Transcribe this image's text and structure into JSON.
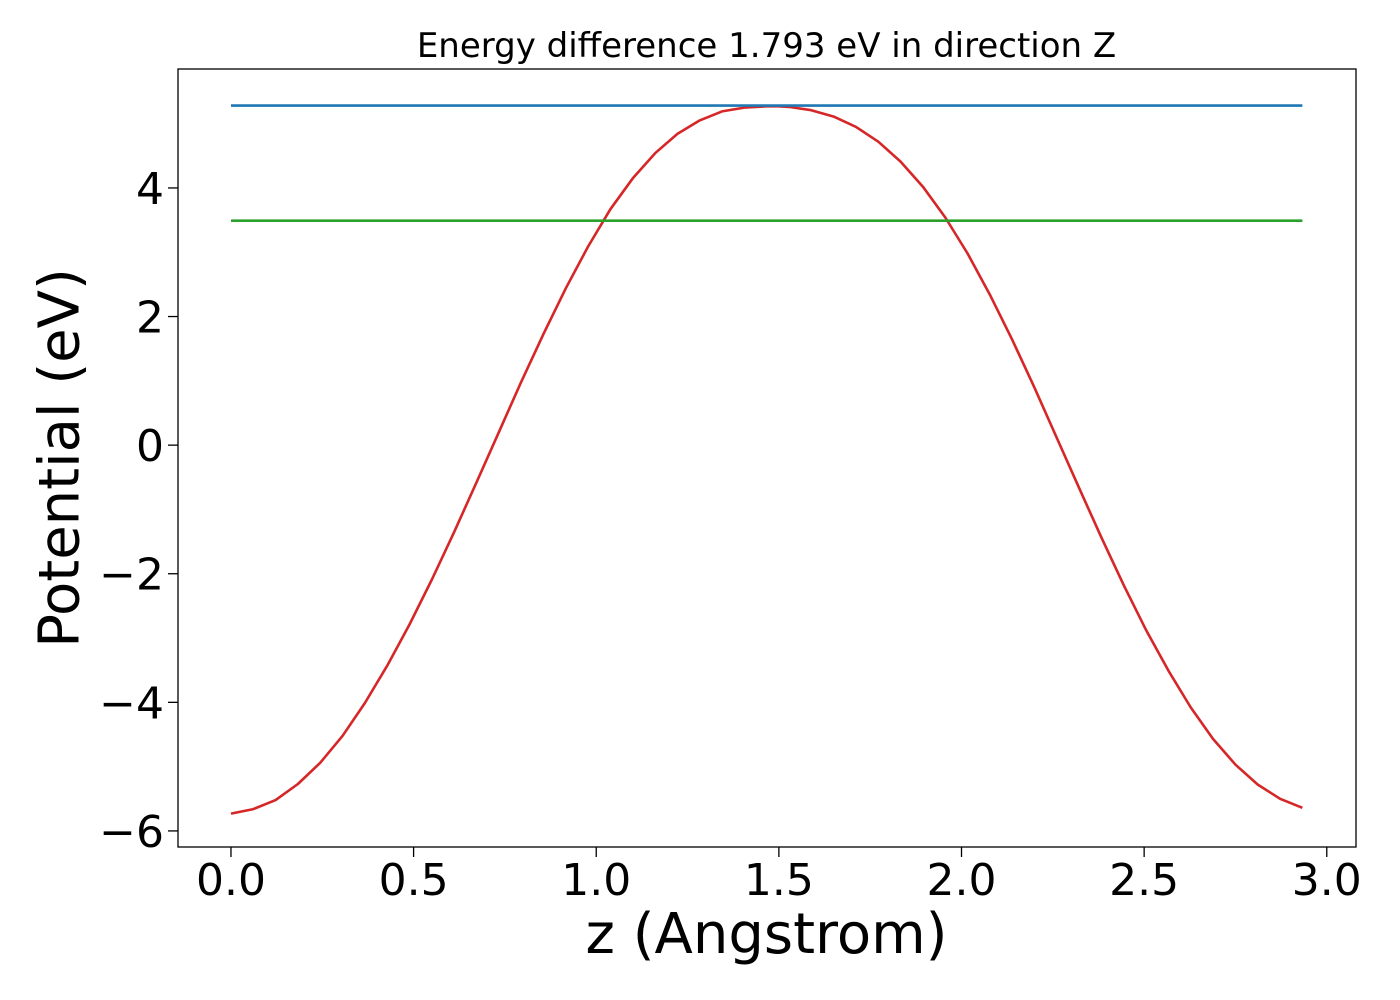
{
  "chart_data": {
    "type": "line",
    "title": "Energy difference 1.793 eV in direction Z",
    "xlabel": "z (Angstrom)",
    "ylabel": "Potential (eV)",
    "xlim": [
      -0.145,
      3.08
    ],
    "ylim": [
      -6.25,
      5.85
    ],
    "xticks": [
      0.0,
      0.5,
      1.0,
      1.5,
      2.0,
      2.5,
      3.0
    ],
    "xtick_labels": [
      "0.0",
      "0.5",
      "1.0",
      "1.5",
      "2.0",
      "2.5",
      "3.0"
    ],
    "yticks": [
      -6,
      -4,
      -2,
      0,
      2,
      4
    ],
    "ytick_labels": [
      "−6",
      "−4",
      "−2",
      "0",
      "2",
      "4"
    ],
    "grid": false,
    "series": [
      {
        "color": "#d62728",
        "x": [
          0.0,
          0.0611,
          0.1222,
          0.1833,
          0.2444,
          0.3056,
          0.3667,
          0.4278,
          0.4889,
          0.55,
          0.6111,
          0.6722,
          0.7333,
          0.7944,
          0.8556,
          0.9167,
          0.9778,
          1.0389,
          1.1,
          1.1611,
          1.2222,
          1.2833,
          1.3444,
          1.4056,
          1.4667,
          1.5,
          1.5278,
          1.5889,
          1.65,
          1.7111,
          1.7722,
          1.8333,
          1.8944,
          1.9556,
          2.0167,
          2.0778,
          2.1389,
          2.2,
          2.2611,
          2.3222,
          2.3833,
          2.4444,
          2.5056,
          2.5667,
          2.6278,
          2.6889,
          2.75,
          2.8111,
          2.8722,
          2.9333
        ],
        "y": [
          -5.73,
          -5.66,
          -5.52,
          -5.27,
          -4.94,
          -4.52,
          -4.01,
          -3.43,
          -2.79,
          -2.09,
          -1.35,
          -0.58,
          0.2,
          0.98,
          1.73,
          2.44,
          3.09,
          3.67,
          4.15,
          4.54,
          4.84,
          5.05,
          5.19,
          5.25,
          5.27,
          5.27,
          5.26,
          5.21,
          5.11,
          4.95,
          4.72,
          4.41,
          4.02,
          3.54,
          2.98,
          2.34,
          1.64,
          0.89,
          0.11,
          -0.67,
          -1.44,
          -2.18,
          -2.88,
          -3.51,
          -4.08,
          -4.57,
          -4.97,
          -5.28,
          -5.5,
          -5.64
        ]
      },
      {
        "color": "#1f77b4",
        "x": [
          0.0,
          2.9333
        ],
        "y": [
          5.28,
          5.28
        ]
      },
      {
        "color": "#2ca02c",
        "x": [
          0.0,
          2.9333
        ],
        "y": [
          3.49,
          3.49
        ]
      }
    ]
  }
}
